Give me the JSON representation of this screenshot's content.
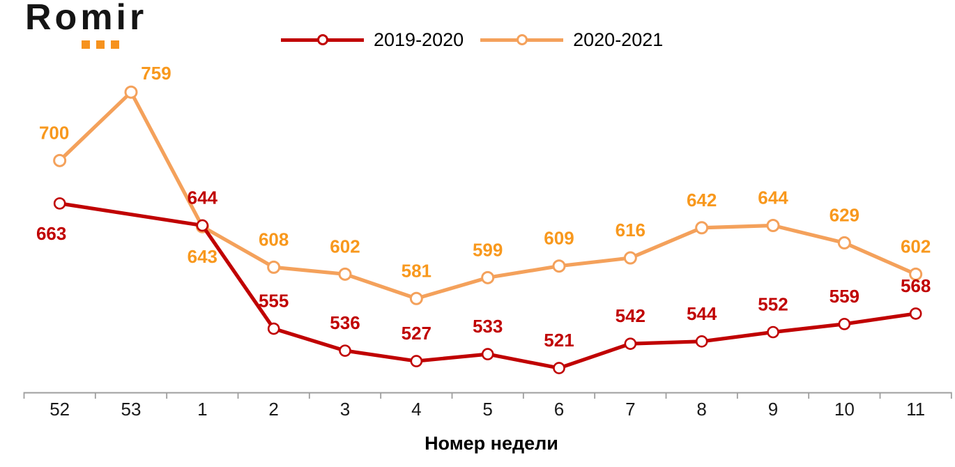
{
  "logo": {
    "text": "Romir",
    "dot_color": "#F6921E"
  },
  "chart_data": {
    "type": "line",
    "categories": [
      "52",
      "53",
      "1",
      "2",
      "3",
      "4",
      "5",
      "6",
      "7",
      "8",
      "9",
      "10",
      "11"
    ],
    "xlabel": "Номер недели",
    "ylabel": "",
    "title": "",
    "ylim": [
      500,
      800
    ],
    "grid": false,
    "legend_position": "top",
    "axis_color": "#9E9E9E",
    "tick_label_color": "#1A1A1A",
    "series": [
      {
        "name": "2019-2020",
        "color": "#C00000",
        "label_color": "#C00000",
        "marker": "circle-open",
        "values": [
          663,
          null,
          644,
          555,
          536,
          527,
          533,
          521,
          542,
          544,
          552,
          559,
          568
        ],
        "labels_below": [
          0
        ],
        "label_dx": {
          "0": -12
        },
        "label_dy": {}
      },
      {
        "name": "2020-2021",
        "color": "#F4A15B",
        "label_color": "#F8981D",
        "marker": "circle-open",
        "values": [
          700,
          759,
          643,
          608,
          602,
          581,
          599,
          609,
          616,
          642,
          644,
          629,
          602
        ],
        "labels_below": [
          2
        ],
        "label_dx": {
          "0": -8,
          "1": 36
        },
        "label_dy": {
          "1": 13
        }
      }
    ]
  }
}
